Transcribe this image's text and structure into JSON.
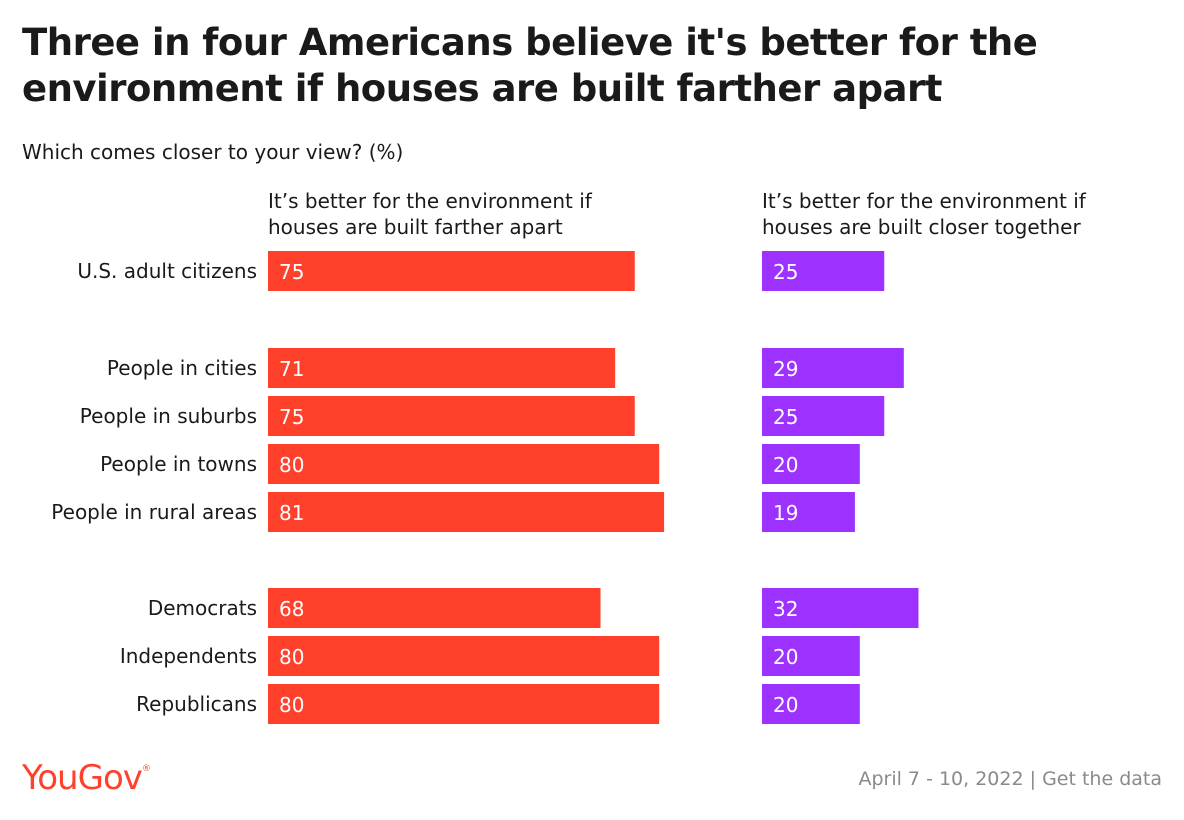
{
  "title": "Three in four Americans believe it's better for the environment if houses are built farther apart",
  "subtitle": "Which comes closer to your view? (%)",
  "footer": {
    "logo": "YouGov",
    "logo_mark": "®",
    "date": "April 7 - 10, 2022",
    "separator": "|",
    "link": "Get the data"
  },
  "colors": {
    "farther": "#ff412c",
    "closer": "#9d31ff",
    "text": "#1a1a1a",
    "muted": "#8a8a8a"
  },
  "chart_data": {
    "type": "bar",
    "orientation": "horizontal",
    "xlim": [
      0,
      100
    ],
    "categories": [
      "U.S. adult citizens",
      "People in cities",
      "People in suburbs",
      "People in towns",
      "People in rural areas",
      "Democrats",
      "Independents",
      "Republicans"
    ],
    "series": [
      {
        "name": "It’s better for the environment if houses are built farther apart",
        "values": [
          75,
          71,
          75,
          80,
          81,
          68,
          80,
          80
        ]
      },
      {
        "name": "It’s better for the environment if houses are built closer together",
        "values": [
          25,
          29,
          25,
          20,
          19,
          32,
          20,
          20
        ]
      }
    ]
  }
}
